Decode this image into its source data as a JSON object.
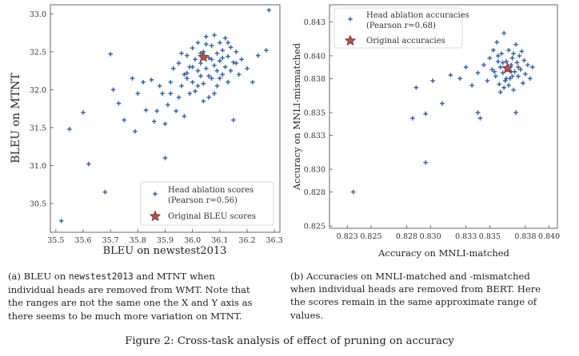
{
  "chart_data": [
    {
      "type": "scatter",
      "xlabel": "BLEU on newstest2013",
      "ylabel": "BLEU on MTNT",
      "xlim": [
        35.48,
        36.32
      ],
      "ylim": [
        30.12,
        33.12
      ],
      "xticks": [
        "35.5",
        "35.6",
        "35.7",
        "35.8",
        "35.9",
        "36.0",
        "36.1",
        "36.2",
        "36.3"
      ],
      "yticks": [
        "30.5",
        "31.0",
        "31.5",
        "32.0",
        "32.5",
        "33.0"
      ],
      "legend": {
        "placement": "bottom-right",
        "entries": [
          "Head ablation scores",
          "(Pearson r=0.56)",
          "Original BLEU scores"
        ]
      },
      "colors": {
        "points": "#3a64a8",
        "original": "#b8504a"
      },
      "series": [
        {
          "name": "Head ablation scores",
          "marker": "plus",
          "points": [
            [
              35.52,
              30.27
            ],
            [
              35.55,
              31.48
            ],
            [
              35.6,
              31.7
            ],
            [
              35.62,
              31.02
            ],
            [
              35.68,
              30.65
            ],
            [
              35.7,
              32.47
            ],
            [
              35.71,
              32.0
            ],
            [
              35.73,
              31.82
            ],
            [
              35.75,
              31.6
            ],
            [
              35.78,
              32.15
            ],
            [
              35.79,
              31.45
            ],
            [
              35.8,
              31.95
            ],
            [
              35.82,
              32.1
            ],
            [
              35.83,
              31.73
            ],
            [
              35.85,
              32.13
            ],
            [
              35.86,
              31.58
            ],
            [
              35.87,
              31.72
            ],
            [
              35.88,
              32.05
            ],
            [
              35.89,
              31.95
            ],
            [
              35.9,
              31.1
            ],
            [
              35.9,
              31.55
            ],
            [
              35.91,
              31.8
            ],
            [
              35.92,
              31.95
            ],
            [
              35.92,
              32.1
            ],
            [
              35.93,
              32.28
            ],
            [
              35.94,
              31.72
            ],
            [
              35.95,
              31.9
            ],
            [
              35.95,
              32.35
            ],
            [
              35.96,
              32.05
            ],
            [
              35.97,
              32.2
            ],
            [
              35.97,
              31.65
            ],
            [
              35.98,
              32.15
            ],
            [
              35.98,
              32.45
            ],
            [
              35.99,
              31.95
            ],
            [
              35.99,
              32.3
            ],
            [
              36.0,
              32.1
            ],
            [
              36.0,
              32.55
            ],
            [
              36.01,
              32.4
            ],
            [
              36.01,
              31.98
            ],
            [
              36.02,
              32.25
            ],
            [
              36.02,
              32.62
            ],
            [
              36.03,
              32.18
            ],
            [
              36.03,
              32.35
            ],
            [
              36.04,
              32.5
            ],
            [
              36.04,
              32.08
            ],
            [
              36.05,
              32.7
            ],
            [
              36.05,
              32.28
            ],
            [
              36.06,
              32.42
            ],
            [
              36.06,
              31.9
            ],
            [
              36.07,
              32.58
            ],
            [
              36.07,
              32.15
            ],
            [
              36.08,
              32.32
            ],
            [
              36.08,
              32.72
            ],
            [
              36.09,
              32.48
            ],
            [
              36.09,
              32.05
            ],
            [
              36.1,
              32.38
            ],
            [
              36.1,
              32.62
            ],
            [
              36.11,
              32.2
            ],
            [
              36.11,
              32.52
            ],
            [
              36.12,
              32.3
            ],
            [
              36.12,
              32.68
            ],
            [
              36.13,
              32.1
            ],
            [
              36.13,
              32.44
            ],
            [
              36.14,
              32.56
            ],
            [
              36.14,
              32.25
            ],
            [
              36.15,
              32.36
            ],
            [
              36.15,
              31.6
            ],
            [
              36.16,
              32.5
            ],
            [
              36.17,
              32.2
            ],
            [
              36.18,
              32.4
            ],
            [
              36.2,
              32.28
            ],
            [
              36.22,
              32.1
            ],
            [
              36.24,
              32.45
            ],
            [
              36.27,
              32.52
            ],
            [
              36.28,
              33.05
            ],
            [
              36.02,
              32.05
            ],
            [
              36.04,
              31.85
            ],
            [
              36.06,
              32.18
            ],
            [
              36.08,
              31.95
            ],
            [
              36.1,
              32.15
            ],
            [
              36.0,
              32.3
            ],
            [
              35.96,
              32.48
            ],
            [
              36.05,
              32.6
            ],
            [
              36.09,
              32.25
            ],
            [
              36.13,
              32.62
            ],
            [
              36.16,
              32.35
            ],
            [
              36.07,
              32.4
            ],
            [
              36.03,
              32.48
            ],
            [
              36.11,
              32.42
            ],
            [
              35.98,
              32.22
            ]
          ]
        },
        {
          "name": "Original BLEU scores",
          "marker": "star",
          "points": [
            [
              36.04,
              32.43
            ]
          ]
        }
      ]
    },
    {
      "type": "scatter",
      "xlabel": "Accuracy on MNLI-matched",
      "ylabel": "Accuracy on MNLI-mismatched",
      "xlim": [
        0.8215,
        0.8407
      ],
      "ylim": [
        0.8248,
        0.8445
      ],
      "xticks": [
        "0.823",
        "0.825",
        "0.828",
        "0.830",
        "0.833",
        "0.835",
        "0.838",
        "0.840"
      ],
      "yticks": [
        "0.825",
        "0.828",
        "0.830",
        "0.833",
        "0.835",
        "0.838",
        "0.840",
        "0.843"
      ],
      "legend": {
        "placement": "top-left",
        "entries": [
          "Head ablation accuracies",
          "(Pearson r=0.68)",
          "Original accuracies"
        ]
      },
      "colors": {
        "points": "#3a64a8",
        "original": "#b8504a"
      },
      "series": [
        {
          "name": "Head ablation accuracies",
          "marker": "plus",
          "points": [
            [
              0.8235,
              0.828
            ],
            [
              0.8296,
              0.8306
            ],
            [
              0.8285,
              0.8345
            ],
            [
              0.8288,
              0.8372
            ],
            [
              0.8296,
              0.8349
            ],
            [
              0.8302,
              0.8378
            ],
            [
              0.831,
              0.8358
            ],
            [
              0.8317,
              0.8383
            ],
            [
              0.8325,
              0.838
            ],
            [
              0.833,
              0.839
            ],
            [
              0.8335,
              0.8374
            ],
            [
              0.834,
              0.8385
            ],
            [
              0.8345,
              0.8392
            ],
            [
              0.834,
              0.835
            ],
            [
              0.8342,
              0.8345
            ],
            [
              0.8348,
              0.8378
            ],
            [
              0.835,
              0.8398
            ],
            [
              0.8352,
              0.8388
            ],
            [
              0.8353,
              0.8405
            ],
            [
              0.8355,
              0.8382
            ],
            [
              0.8356,
              0.8412
            ],
            [
              0.8357,
              0.8395
            ],
            [
              0.8358,
              0.8375
            ],
            [
              0.8359,
              0.839
            ],
            [
              0.836,
              0.8402
            ],
            [
              0.8361,
              0.8385
            ],
            [
              0.8362,
              0.842
            ],
            [
              0.8363,
              0.8378
            ],
            [
              0.8364,
              0.8395
            ],
            [
              0.8365,
              0.8388
            ],
            [
              0.8366,
              0.8405
            ],
            [
              0.8367,
              0.838
            ],
            [
              0.8368,
              0.8392
            ],
            [
              0.8369,
              0.8398
            ],
            [
              0.837,
              0.837
            ],
            [
              0.8371,
              0.8386
            ],
            [
              0.8372,
              0.841
            ],
            [
              0.8373,
              0.8394
            ],
            [
              0.8374,
              0.8382
            ],
            [
              0.8375,
              0.84
            ],
            [
              0.8376,
              0.8388
            ],
            [
              0.8378,
              0.8376
            ],
            [
              0.8379,
              0.8396
            ],
            [
              0.838,
              0.8384
            ],
            [
              0.8382,
              0.8392
            ],
            [
              0.8384,
              0.838
            ],
            [
              0.8386,
              0.839
            ],
            [
              0.8372,
              0.835
            ],
            [
              0.8359,
              0.8368
            ],
            [
              0.8354,
              0.8386
            ],
            [
              0.8366,
              0.8374
            ],
            [
              0.837,
              0.8402
            ],
            [
              0.8357,
              0.84
            ],
            [
              0.8364,
              0.838
            ],
            [
              0.8368,
              0.8386
            ],
            [
              0.8361,
              0.8394
            ],
            [
              0.8374,
              0.839
            ],
            [
              0.8377,
              0.8404
            ],
            [
              0.8362,
              0.8372
            ],
            [
              0.8369,
              0.8382
            ]
          ]
        },
        {
          "name": "Original accuracies",
          "marker": "star",
          "points": [
            [
              0.8365,
              0.8389
            ]
          ]
        }
      ]
    }
  ],
  "captions": {
    "a": {
      "line1_pre": "(a)  BLEU on ",
      "line1_mono": "newstest2013",
      "line1_post": " and MTNT when",
      "line2": "individual heads are removed from WMT. Note that",
      "line3": "the ranges are not the same one the X and Y axis as",
      "line4": "there seems to be much more variation on MTNT."
    },
    "b": {
      "line1": "(b)  Accuracies on MNLI-matched and -mismatched",
      "line2": "when individual heads are removed from BERT. Here",
      "line3": "the scores remain in the same approximate range of",
      "line4": "values."
    },
    "figure": "Figure 2: Cross-task analysis of effect of pruning on accuracy"
  }
}
